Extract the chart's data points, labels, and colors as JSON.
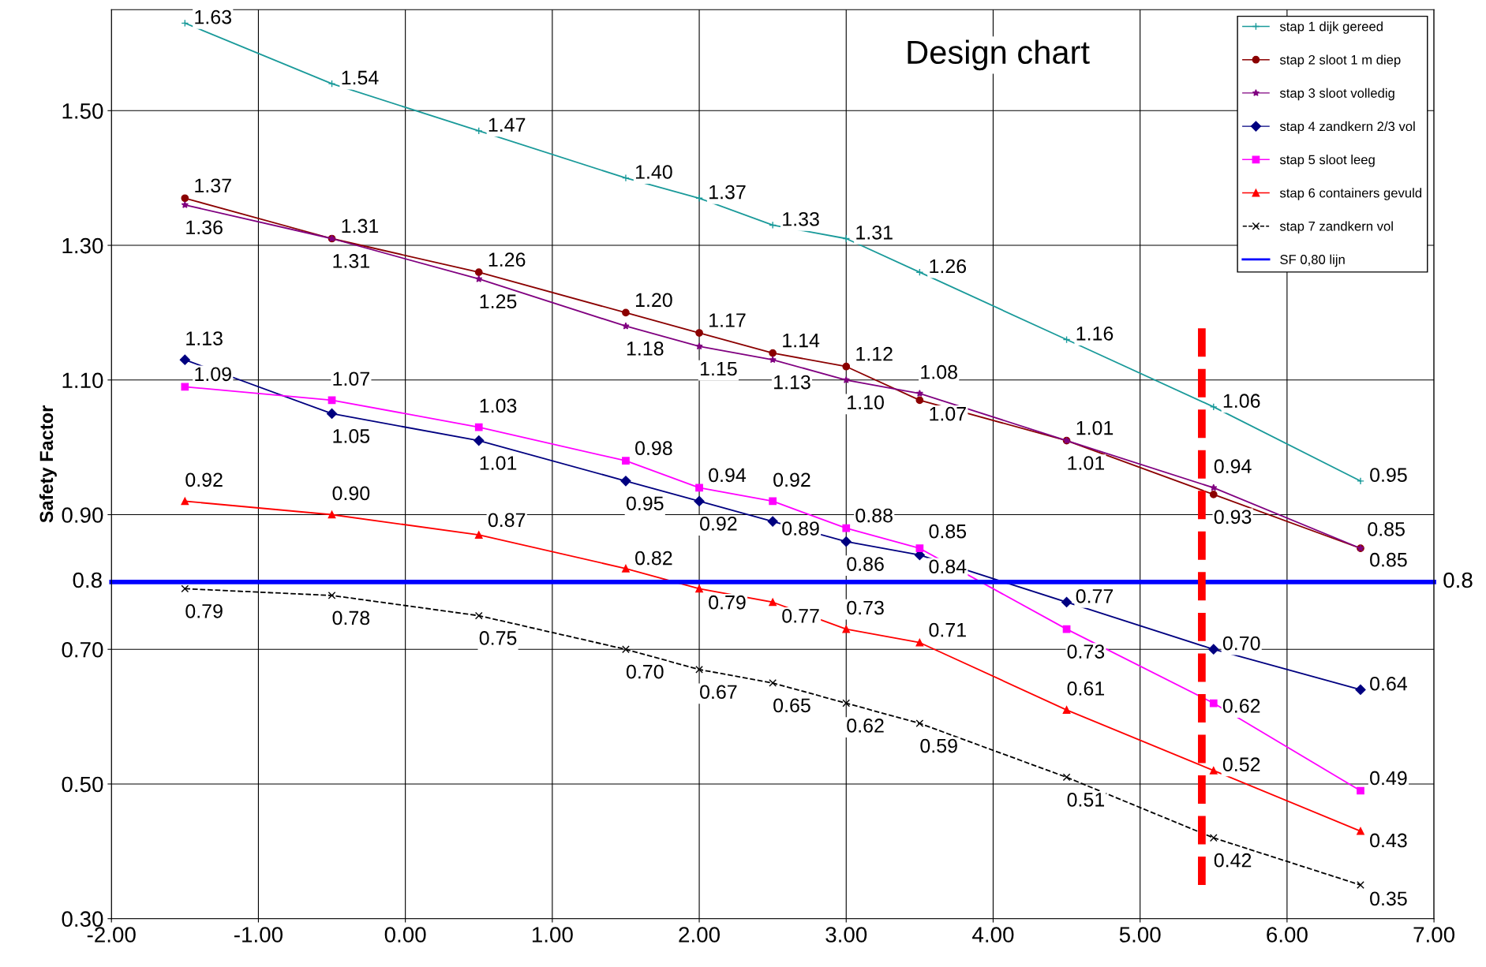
{
  "chart_data": {
    "type": "line",
    "title": "Design chart",
    "ylabel": "Safety Factor",
    "xlim": [
      -2,
      7
    ],
    "xticks": [
      {
        "value": -2,
        "label": "-2.00"
      },
      {
        "value": -1,
        "label": "-1.00"
      },
      {
        "value": 0,
        "label": "0.00"
      },
      {
        "value": 1,
        "label": "1.00"
      },
      {
        "value": 2,
        "label": "2.00"
      },
      {
        "value": 3,
        "label": "3.00"
      },
      {
        "value": 4,
        "label": "4.00"
      },
      {
        "value": 5,
        "label": "5.00"
      },
      {
        "value": 6,
        "label": "6.00"
      },
      {
        "value": 7,
        "label": "7.00"
      }
    ],
    "ylim": [
      0.3,
      1.65
    ],
    "yticks": [
      {
        "value": 0.3,
        "label": "0.30"
      },
      {
        "value": 0.5,
        "label": "0.50"
      },
      {
        "value": 0.7,
        "label": "0.70"
      },
      {
        "value": 0.9,
        "label": "0.90"
      },
      {
        "value": 1.1,
        "label": "1.10"
      },
      {
        "value": 1.3,
        "label": "1.30"
      },
      {
        "value": 1.5,
        "label": "1.50"
      }
    ],
    "grid": true,
    "legend": "top right",
    "line_style": "solid",
    "x": [
      -1.5,
      -0.5,
      0.5,
      1.5,
      2,
      2.5,
      3,
      3.5,
      4.5,
      5.5,
      6.5
    ],
    "series": [
      {
        "name": "stap 1 dijk gereed",
        "color": "#1a9a9a",
        "marker": "plus",
        "values": [
          1.63,
          1.54,
          1.47,
          1.4,
          1.37,
          1.33,
          1.31,
          1.26,
          1.16,
          1.06,
          0.95
        ],
        "value_labels": [
          "1.63",
          "1.54",
          "1.47",
          "1.40",
          "1.37",
          "1.33",
          "1.31",
          "1.26",
          "1.16",
          "1.06",
          "0.95"
        ]
      },
      {
        "name": "stap 2 sloot 1 m diep",
        "color": "#8b0000",
        "marker": "circle",
        "values": [
          1.37,
          1.31,
          1.26,
          1.2,
          1.17,
          1.14,
          1.12,
          1.07,
          1.01,
          0.93,
          0.85
        ],
        "value_labels": [
          "1.37",
          "1.31",
          "1.26",
          "1.20",
          "1.17",
          "1.14",
          "1.12",
          "1.07",
          "1.01",
          "0.93",
          "0.85"
        ]
      },
      {
        "name": "stap 3 sloot volledig",
        "color": "#800080",
        "marker": "star",
        "values": [
          1.36,
          1.31,
          1.25,
          1.18,
          1.15,
          1.13,
          1.1,
          1.08,
          1.01,
          0.94,
          0.85
        ],
        "value_labels": [
          "1.36",
          "1.31",
          "1.25",
          "1.18",
          "1.15",
          "1.13",
          "1.10",
          "1.08",
          "1.01",
          "0.94",
          "0.85"
        ]
      },
      {
        "name": "stap 4 zandkern 2/3 vol",
        "color": "#000080",
        "marker": "diamond",
        "values": [
          1.13,
          1.05,
          1.01,
          0.95,
          0.92,
          0.89,
          0.86,
          0.84,
          0.77,
          0.7,
          0.64
        ],
        "value_labels": [
          "1.13",
          "1.05",
          "1.01",
          "0.95",
          "0.92",
          "0.89",
          "0.86",
          "0.84",
          "0.77",
          "0.70",
          "0.64"
        ]
      },
      {
        "name": "stap 5 sloot leeg",
        "color": "#ff00ff",
        "marker": "square",
        "values": [
          1.09,
          1.07,
          1.03,
          0.98,
          0.94,
          0.92,
          0.88,
          0.85,
          0.73,
          0.62,
          0.49
        ],
        "value_labels": [
          "1.09",
          "1.07",
          "1.03",
          "0.98",
          "0.94",
          "0.92",
          "0.88",
          "0.85",
          "0.73",
          "0.62",
          "0.49"
        ]
      },
      {
        "name": "stap 6 containers gevuld",
        "color": "#ff0000",
        "marker": "triangle",
        "values": [
          0.92,
          0.9,
          0.87,
          0.82,
          0.79,
          0.77,
          0.73,
          0.71,
          0.61,
          0.52,
          0.43
        ],
        "value_labels": [
          "0.92",
          "0.90",
          "0.87",
          "0.82",
          "0.79",
          "0.77",
          "0.73",
          "0.71",
          "0.61",
          "0.52",
          "0.43"
        ]
      },
      {
        "name": "stap 7 zandkern vol",
        "color": "#000000",
        "marker": "cross",
        "line_style": "dashed",
        "values": [
          0.79,
          0.78,
          0.75,
          0.7,
          0.67,
          0.65,
          0.62,
          0.59,
          0.51,
          0.42,
          0.35
        ],
        "value_labels": [
          "0.79",
          "0.78",
          "0.75",
          "0.70",
          "0.67",
          "0.65",
          "0.62",
          "0.59",
          "0.51",
          "0.42",
          "0.35"
        ]
      },
      {
        "name": "SF 0,80 lijn",
        "color": "#0000ff",
        "marker": "none",
        "x": [
          -2,
          7
        ],
        "values": [
          0.8,
          0.8
        ],
        "value_labels": [
          "0.8",
          "0.8"
        ]
      },
      {
        "color": "#ff0000",
        "marker": "none",
        "line_style": "dashed",
        "x": [
          5.42,
          5.42
        ],
        "values": [
          0.35,
          1.18
        ]
      }
    ]
  }
}
